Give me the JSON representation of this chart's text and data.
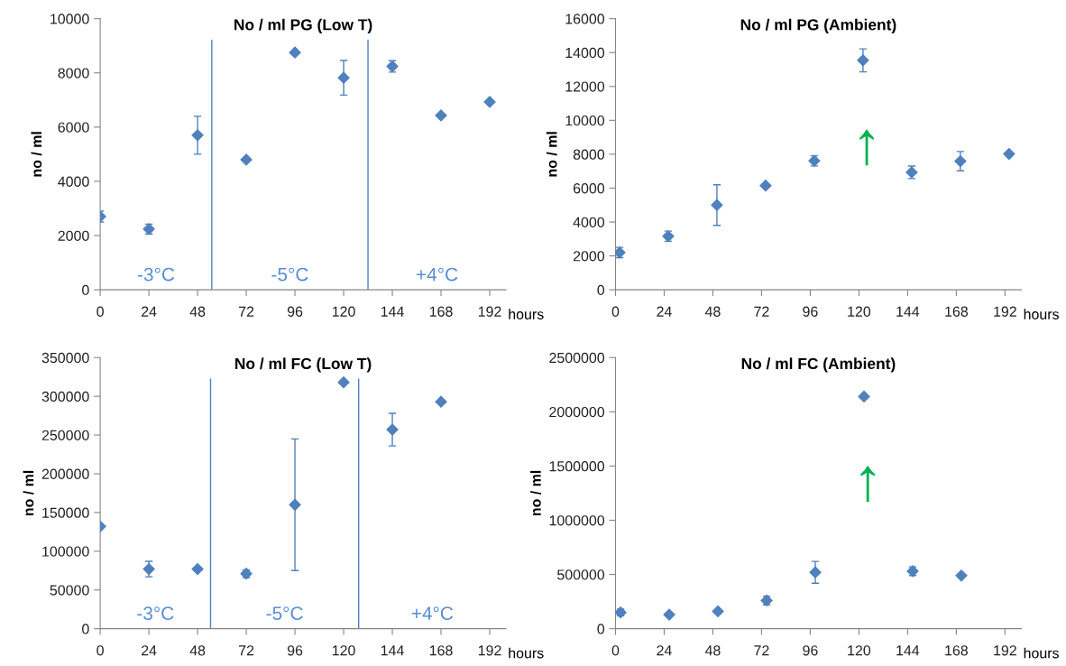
{
  "chart_data": [
    {
      "type": "scatter",
      "title": "No / ml PG (Low T)",
      "xlabel": "hours",
      "ylabel": "no / ml",
      "marker": "diamond",
      "xlim": [
        0,
        200
      ],
      "xticks": [
        0,
        24,
        48,
        72,
        96,
        120,
        144,
        168,
        192
      ],
      "ylim": [
        0,
        10000
      ],
      "yticks": [
        0,
        2000,
        4000,
        6000,
        8000,
        10000
      ],
      "series": [
        {
          "color": "#4f81bd",
          "x": [
            0,
            24,
            48,
            72,
            96,
            120,
            144,
            168,
            192
          ],
          "values": [
            2700,
            2240,
            5700,
            4800,
            8750,
            7820,
            8240,
            6430,
            6930
          ],
          "errors": [
            200,
            180,
            700,
            null,
            null,
            640,
            210,
            null,
            null
          ]
        }
      ],
      "ref_lines": [
        {
          "axis": "x",
          "value": 55,
          "color": "#4f81bd"
        },
        {
          "axis": "x",
          "value": 132,
          "color": "#4f81bd"
        }
      ],
      "annotations": [
        "-3°C",
        "-5°C",
        "+4°C"
      ]
    },
    {
      "type": "scatter",
      "title": "No / ml PG (Ambient)",
      "xlabel": "hours",
      "ylabel": "no / ml",
      "marker": "diamond",
      "xlim": [
        0,
        200
      ],
      "xticks": [
        0,
        24,
        48,
        72,
        96,
        120,
        144,
        168,
        192
      ],
      "ylim": [
        0,
        16000
      ],
      "yticks": [
        0,
        2000,
        4000,
        6000,
        8000,
        10000,
        12000,
        14000,
        16000
      ],
      "series": [
        {
          "color": "#4f81bd",
          "x": [
            2,
            26,
            50,
            74,
            98,
            122,
            146,
            170,
            194
          ],
          "values": [
            2200,
            3160,
            5000,
            6150,
            7610,
            13540,
            6930,
            7590,
            8020
          ],
          "errors": [
            300,
            300,
            1200,
            100,
            300,
            680,
            370,
            570,
            null
          ]
        }
      ],
      "annotations": [
        {
          "text": "↑",
          "x": 122,
          "y": 13540
        }
      ]
    },
    {
      "type": "scatter",
      "title": "No / ml FC (Low T)",
      "xlabel": "hours",
      "ylabel": "no / ml",
      "marker": "diamond",
      "xlim": [
        0,
        200
      ],
      "xticks": [
        0,
        24,
        48,
        72,
        96,
        120,
        144,
        168,
        192
      ],
      "ylim": [
        0,
        350000
      ],
      "yticks": [
        0,
        50000,
        100000,
        150000,
        200000,
        250000,
        300000,
        350000
      ],
      "series": [
        {
          "color": "#4f81bd",
          "x": [
            0,
            24,
            48,
            72,
            96,
            120,
            144,
            168
          ],
          "values": [
            132000,
            77000,
            77000,
            71000,
            160000,
            318000,
            257000,
            293000
          ],
          "errors": [
            null,
            10000,
            null,
            5000,
            85000,
            null,
            21000,
            null
          ]
        }
      ],
      "ref_lines": [
        {
          "axis": "x",
          "value": 54.4,
          "color": "#4f81bd"
        },
        {
          "axis": "x",
          "value": 127.4,
          "color": "#4f81bd"
        }
      ],
      "annotations": [
        "-3°C",
        "-5°C",
        "+4°C"
      ]
    },
    {
      "type": "scatter",
      "title": "No / ml FC (Ambient)",
      "xlabel": "hours",
      "ylabel": "no / ml",
      "marker": "diamond",
      "xlim": [
        0,
        200
      ],
      "xticks": [
        0,
        24,
        48,
        72,
        96,
        120,
        144,
        168,
        192
      ],
      "ylim": [
        0,
        2500000
      ],
      "yticks": [
        0,
        500000,
        1000000,
        1500000,
        2000000,
        2500000
      ],
      "series": [
        {
          "color": "#4f81bd",
          "x": [
            2.5,
            26.5,
            50.5,
            74.5,
            98.5,
            122.5,
            146.5,
            170.5
          ],
          "values": [
            150000,
            130000,
            160000,
            260000,
            520000,
            2140000,
            530000,
            490000
          ],
          "errors": [
            30000,
            null,
            null,
            40000,
            100000,
            null,
            40000,
            null
          ]
        }
      ],
      "annotations": [
        {
          "text": "↑",
          "x": 122.5,
          "y": 2140000
        }
      ]
    }
  ]
}
